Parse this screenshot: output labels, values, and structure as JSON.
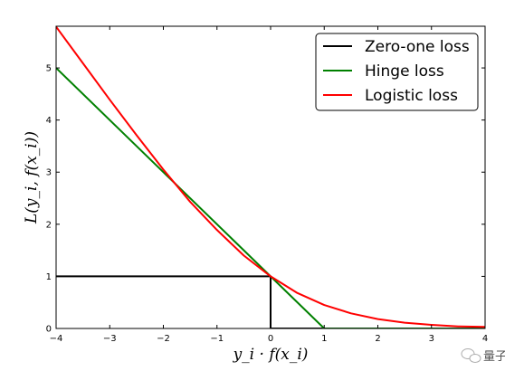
{
  "chart_data": {
    "type": "line",
    "title": "",
    "xlabel": "y_i · f(x_i)",
    "ylabel": "L(y_i, f(x_i))",
    "xlim": [
      -4,
      4
    ],
    "ylim": [
      0,
      5.8
    ],
    "x_ticks": [
      -4,
      -3,
      -2,
      -1,
      0,
      1,
      2,
      3,
      4
    ],
    "y_ticks": [
      0,
      1,
      2,
      3,
      4,
      5
    ],
    "grid": false,
    "legend_position": "top-right",
    "series": [
      {
        "name": "Zero-one loss",
        "color": "#000000",
        "x": [
          -4,
          0,
          0,
          4
        ],
        "y": [
          1,
          1,
          0,
          0
        ]
      },
      {
        "name": "Hinge loss",
        "color": "#008000",
        "x": [
          -4,
          1,
          4
        ],
        "y": [
          5,
          0,
          0
        ]
      },
      {
        "name": "Logistic loss",
        "color": "#ff0000",
        "x": [
          -4,
          -3.5,
          -3,
          -2.5,
          -2,
          -1.5,
          -1,
          -0.5,
          0,
          0.5,
          1,
          1.5,
          2,
          2.5,
          3,
          3.5,
          4
        ],
        "y": [
          5.79,
          5.09,
          4.39,
          3.71,
          3.05,
          2.43,
          1.89,
          1.4,
          1.0,
          0.68,
          0.45,
          0.29,
          0.18,
          0.11,
          0.07,
          0.04,
          0.03
        ]
      }
    ]
  },
  "watermark": {
    "text": "量子",
    "icon": "wechat-icon"
  }
}
